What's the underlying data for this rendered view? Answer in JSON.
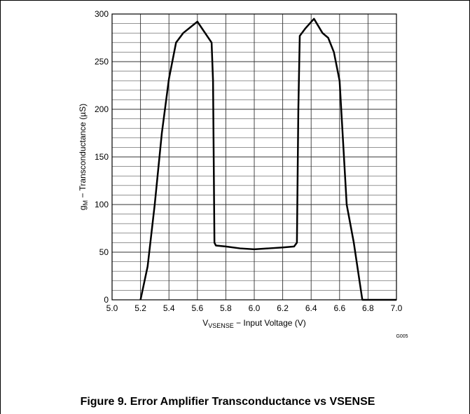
{
  "chart_data": {
    "type": "line",
    "ylabel": {
      "main": "g",
      "sub": "M",
      "rest": " − Transconductance (µS)"
    },
    "xlabel": {
      "main": "V",
      "sub": "VSENSE",
      "rest": " − Input Voltage (V)"
    },
    "code": "G005",
    "caption": "Figure 9. Error Amplifier Transconductance vs VSENSE",
    "xlim": [
      5.0,
      7.0
    ],
    "ylim": [
      0,
      300
    ],
    "xticks": [
      {
        "value": 5.0,
        "label": "5.0"
      },
      {
        "value": 5.2,
        "label": "5.2"
      },
      {
        "value": 5.4,
        "label": "5.4"
      },
      {
        "value": 5.6,
        "label": "5.6"
      },
      {
        "value": 5.8,
        "label": "5.8"
      },
      {
        "value": 6.0,
        "label": "6.0"
      },
      {
        "value": 6.2,
        "label": "6.2"
      },
      {
        "value": 6.4,
        "label": "6.4"
      },
      {
        "value": 6.6,
        "label": "6.6"
      },
      {
        "value": 6.8,
        "label": "6.8"
      },
      {
        "value": 7.0,
        "label": "7.0"
      }
    ],
    "yticks": [
      0,
      50,
      100,
      150,
      200,
      250,
      300
    ],
    "yminor": [
      10,
      20,
      30,
      40,
      60,
      70,
      80,
      90,
      110,
      120,
      130,
      140,
      160,
      170,
      180,
      190,
      210,
      220,
      230,
      240,
      260,
      270,
      280,
      290
    ],
    "grid": true,
    "series": [
      {
        "color": "#000000",
        "x": [
          5.2,
          5.25,
          5.3,
          5.35,
          5.4,
          5.45,
          5.5,
          5.6,
          5.7,
          5.71,
          5.72,
          5.73,
          5.8,
          5.9,
          6.0,
          6.1,
          6.2,
          6.28,
          6.3,
          6.31,
          6.32,
          6.36,
          6.42,
          6.48,
          6.52,
          6.56,
          6.6,
          6.65,
          6.7,
          6.76,
          6.8,
          7.0
        ],
        "values": [
          0,
          35,
          100,
          175,
          232,
          270,
          280,
          292,
          270,
          230,
          60,
          57,
          56,
          54,
          53,
          54,
          55,
          56,
          60,
          200,
          277,
          285,
          295,
          280,
          275,
          260,
          230,
          100,
          60,
          0,
          0,
          0
        ]
      }
    ]
  }
}
